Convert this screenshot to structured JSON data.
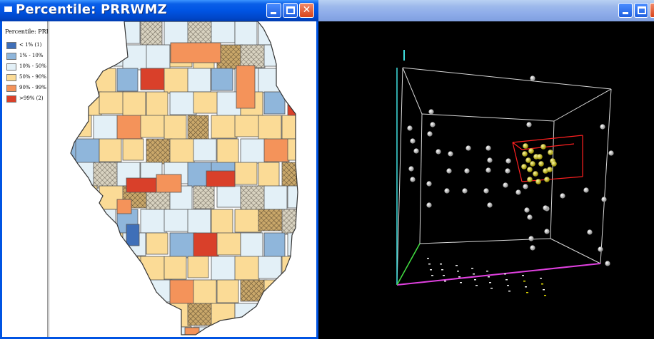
{
  "left_window": {
    "title": "Percentile: PRRWMZ",
    "legend": {
      "title": "Percentile: PRRW",
      "items": [
        {
          "label": "< 1% (1)",
          "color": "#3f6fb8"
        },
        {
          "label": "1% - 10%",
          "color": "#8fb6db"
        },
        {
          "label": "10% - 50%",
          "color": "#e3f0f7"
        },
        {
          "label": "50% - 90%",
          "color": "#fbdb96"
        },
        {
          "label": "90% - 99%",
          "color": "#f4935a"
        },
        {
          "label": ">99% (2)",
          "color": "#d9402a"
        }
      ]
    },
    "buttons": {
      "minimize": "minimize",
      "maximize": "maximize",
      "close": "close"
    }
  },
  "right_window": {
    "title": "",
    "buttons": {
      "minimize": "minimize",
      "maximize": "maximize",
      "close": "close"
    }
  },
  "colors": {
    "xp_title_blue": "#0054e3",
    "hatch": "#b8b0a0",
    "plot_bg": "#000000",
    "cube_line": "#d8d8d8",
    "axis_x": "#e040e0",
    "axis_y": "#40e0e0",
    "axis_z": "#40e040",
    "selection_box": "#ff2020",
    "point_default": "#f0f0f0",
    "point_selected": "#e8e000"
  }
}
